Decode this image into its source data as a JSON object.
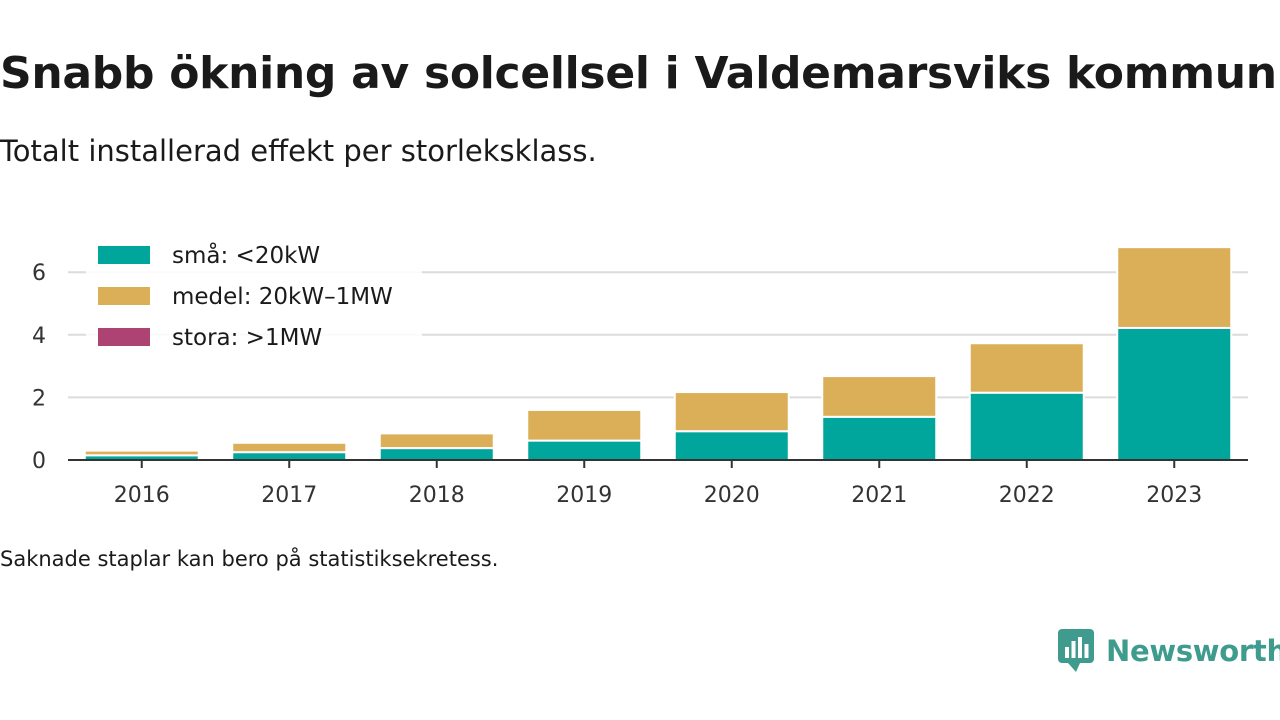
{
  "header": {
    "title": "Snabb ökning av solcellsel i Valdemarsviks kommun",
    "subtitle": "Totalt installerad effekt per storleksklass."
  },
  "footnote": "Saknade staplar kan bero på statistiksekretess.",
  "brand": {
    "name": "Newsworthy",
    "icon": "newsworthy-logo-icon",
    "color": "#3e9b8e"
  },
  "chart_data": {
    "type": "bar",
    "stacked": true,
    "categories": [
      "2016",
      "2017",
      "2018",
      "2019",
      "2020",
      "2021",
      "2022",
      "2023"
    ],
    "series": [
      {
        "name": "små: <20kW",
        "color": "#00a59b",
        "values": [
          0.15,
          0.25,
          0.38,
          0.62,
          0.92,
          1.38,
          2.15,
          4.22
        ]
      },
      {
        "name": "medel: 20kW–1MW",
        "color": "#dbae58",
        "values": [
          0.15,
          0.3,
          0.47,
          0.98,
          1.25,
          1.3,
          1.58,
          2.58
        ]
      },
      {
        "name": "stora: >1MW",
        "color": "#ac4373",
        "values": [
          0,
          0,
          0,
          0,
          0,
          0,
          0,
          0
        ]
      }
    ],
    "yticks": [
      0,
      2,
      4,
      6
    ],
    "ylim": [
      0,
      7
    ],
    "xlabel": "",
    "ylabel": "",
    "grid": true,
    "legend_position": "top-left"
  }
}
